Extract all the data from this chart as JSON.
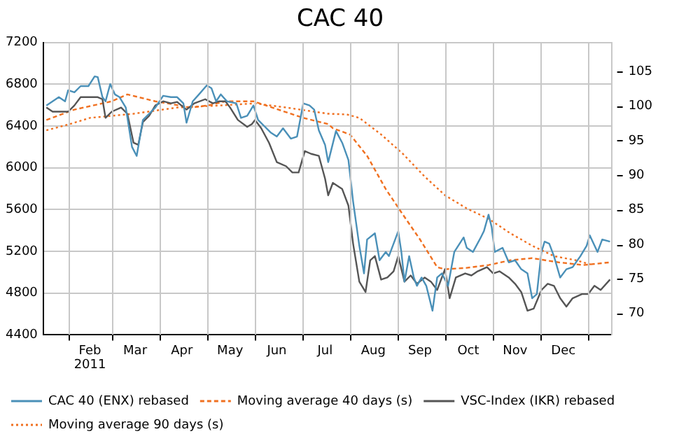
{
  "chart_data": {
    "type": "line",
    "title": "CAC 40",
    "legend": "bottom",
    "annotations": [
      "2011"
    ],
    "grid": true,
    "marker": "none",
    "xlim": [
      "2011-01-16",
      "2012-01-16"
    ],
    "xticks": [
      {
        "value": "2011-02-01",
        "label": null
      },
      {
        "value": "2011-02-15",
        "label": "Feb"
      },
      {
        "value": "2011-03-01",
        "label": null
      },
      {
        "value": "2011-03-16",
        "label": "Mar"
      },
      {
        "value": "2011-04-01",
        "label": null
      },
      {
        "value": "2011-04-15",
        "label": "Apr"
      },
      {
        "value": "2011-05-01",
        "label": null
      },
      {
        "value": "2011-05-16",
        "label": "May"
      },
      {
        "value": "2011-06-01",
        "label": null
      },
      {
        "value": "2011-06-15",
        "label": "Jun"
      },
      {
        "value": "2011-07-01",
        "label": null
      },
      {
        "value": "2011-07-16",
        "label": "Jul"
      },
      {
        "value": "2011-08-01",
        "label": null
      },
      {
        "value": "2011-08-16",
        "label": "Aug"
      },
      {
        "value": "2011-09-01",
        "label": null
      },
      {
        "value": "2011-09-15",
        "label": "Sep"
      },
      {
        "value": "2011-10-01",
        "label": null
      },
      {
        "value": "2011-10-16",
        "label": "Oct"
      },
      {
        "value": "2011-11-01",
        "label": null
      },
      {
        "value": "2011-11-15",
        "label": "Nov"
      },
      {
        "value": "2011-12-01",
        "label": null
      },
      {
        "value": "2011-12-16",
        "label": "Dec"
      },
      {
        "value": "2012-01-01",
        "label": null
      }
    ],
    "ylim": [
      4400,
      7200
    ],
    "yticks": [
      4400,
      4800,
      5200,
      5600,
      6000,
      6400,
      6800,
      7200
    ],
    "y2lim": [
      66.9,
      109.2
    ],
    "y2ticks": [
      70,
      75,
      80,
      85,
      90,
      95,
      100,
      105
    ],
    "series": [
      {
        "name": "CAC 40 (ENX) rebased",
        "color": "#4a90b8",
        "axis": "y2",
        "line_style": "solid",
        "x": [
          "2011-01-18",
          "2011-01-22",
          "2011-01-26",
          "2011-01-30",
          "2011-02-01",
          "2011-02-05",
          "2011-02-09",
          "2011-02-14",
          "2011-02-18",
          "2011-02-20",
          "2011-02-23",
          "2011-02-25",
          "2011-02-28",
          "2011-03-03",
          "2011-03-06",
          "2011-03-10",
          "2011-03-14",
          "2011-03-17",
          "2011-03-21",
          "2011-03-25",
          "2011-03-29",
          "2011-04-03",
          "2011-04-08",
          "2011-04-12",
          "2011-04-16",
          "2011-04-18",
          "2011-04-22",
          "2011-04-26",
          "2011-05-01",
          "2011-05-04",
          "2011-05-07",
          "2011-05-10",
          "2011-05-14",
          "2011-05-20",
          "2011-05-23",
          "2011-05-27",
          "2011-05-31",
          "2011-06-03",
          "2011-06-07",
          "2011-06-11",
          "2011-06-15",
          "2011-06-19",
          "2011-06-24",
          "2011-06-28",
          "2011-07-02",
          "2011-07-06",
          "2011-07-09",
          "2011-07-12",
          "2011-07-16",
          "2011-07-18",
          "2011-07-23",
          "2011-07-27",
          "2011-07-31",
          "2011-08-03",
          "2011-08-07",
          "2011-08-10",
          "2011-08-12",
          "2011-08-17",
          "2011-08-20",
          "2011-08-24",
          "2011-08-26",
          "2011-08-29",
          "2011-09-01",
          "2011-09-03",
          "2011-09-05",
          "2011-09-08",
          "2011-09-11",
          "2011-09-13",
          "2011-09-16",
          "2011-09-19",
          "2011-09-23",
          "2011-09-26",
          "2011-09-29",
          "2011-10-03",
          "2011-10-07",
          "2011-10-13",
          "2011-10-15",
          "2011-10-19",
          "2011-10-24",
          "2011-10-26",
          "2011-10-29",
          "2011-10-31",
          "2011-11-02",
          "2011-11-07",
          "2011-11-11",
          "2011-11-15",
          "2011-11-19",
          "2011-11-23",
          "2011-11-26",
          "2011-11-29",
          "2011-12-02",
          "2011-12-04",
          "2011-12-07",
          "2011-12-10",
          "2011-12-14",
          "2011-12-18",
          "2011-12-22",
          "2011-12-27",
          "2011-12-31",
          "2012-01-02",
          "2012-01-07",
          "2012-01-10",
          "2012-01-15"
        ],
        "values": [
          100.1,
          100.7,
          101.3,
          100.7,
          102.3,
          102.0,
          102.9,
          102.9,
          104.3,
          104.2,
          101.3,
          100.7,
          103.2,
          101.7,
          101.3,
          99.8,
          94.1,
          92.8,
          98.0,
          98.9,
          99.8,
          101.5,
          101.3,
          101.3,
          100.4,
          97.6,
          100.7,
          101.7,
          103.0,
          102.6,
          100.7,
          101.7,
          100.7,
          100.4,
          98.3,
          98.6,
          100.1,
          98.0,
          97.1,
          96.2,
          95.6,
          96.8,
          95.3,
          95.6,
          100.4,
          100.1,
          99.5,
          96.5,
          94.4,
          91.9,
          96.4,
          94.7,
          92.2,
          86.2,
          79.8,
          75.8,
          80.7,
          81.6,
          77.7,
          78.9,
          78.3,
          80.1,
          81.9,
          78.9,
          74.6,
          78.3,
          75.2,
          74.0,
          75.2,
          74.0,
          70.4,
          75.2,
          75.8,
          74.0,
          78.9,
          81.0,
          79.5,
          78.9,
          81.0,
          81.9,
          84.3,
          82.5,
          78.9,
          79.5,
          77.4,
          77.7,
          76.4,
          75.8,
          72.2,
          72.8,
          78.9,
          80.4,
          80.1,
          78.3,
          75.2,
          76.4,
          76.7,
          78.3,
          79.8,
          81.3,
          78.9,
          80.7,
          80.4
        ]
      },
      {
        "name": "VSC-Index (IKR) rebased",
        "color": "#555555",
        "axis": "y2",
        "line_style": "solid",
        "x": [
          "2011-01-18",
          "2011-01-22",
          "2011-01-27",
          "2011-02-01",
          "2011-02-05",
          "2011-02-09",
          "2011-02-15",
          "2011-02-20",
          "2011-02-23",
          "2011-02-25",
          "2011-03-01",
          "2011-03-07",
          "2011-03-11",
          "2011-03-15",
          "2011-03-18",
          "2011-03-21",
          "2011-03-25",
          "2011-03-29",
          "2011-04-03",
          "2011-04-08",
          "2011-04-12",
          "2011-04-18",
          "2011-04-23",
          "2011-04-30",
          "2011-05-05",
          "2011-05-09",
          "2011-05-13",
          "2011-05-16",
          "2011-05-21",
          "2011-05-27",
          "2011-05-30",
          "2011-06-01",
          "2011-06-05",
          "2011-06-10",
          "2011-06-15",
          "2011-06-21",
          "2011-06-25",
          "2011-06-29",
          "2011-07-03",
          "2011-07-07",
          "2011-07-12",
          "2011-07-16",
          "2011-07-18",
          "2011-07-21",
          "2011-07-27",
          "2011-07-31",
          "2011-08-03",
          "2011-08-07",
          "2011-08-11",
          "2011-08-14",
          "2011-08-17",
          "2011-08-21",
          "2011-08-25",
          "2011-08-29",
          "2011-09-01",
          "2011-09-05",
          "2011-09-09",
          "2011-09-13",
          "2011-09-18",
          "2011-09-22",
          "2011-09-26",
          "2011-10-01",
          "2011-10-04",
          "2011-10-08",
          "2011-10-14",
          "2011-10-18",
          "2011-10-22",
          "2011-10-28",
          "2011-11-01",
          "2011-11-05",
          "2011-11-11",
          "2011-11-15",
          "2011-11-19",
          "2011-11-23",
          "2011-11-27",
          "2011-12-02",
          "2011-12-06",
          "2011-12-10",
          "2011-12-14",
          "2011-12-18",
          "2011-12-22",
          "2011-12-28",
          "2012-01-01",
          "2012-01-05",
          "2012-01-09",
          "2012-01-15"
        ],
        "values": [
          99.8,
          99.2,
          99.2,
          99.2,
          100.1,
          101.3,
          101.3,
          101.3,
          101.0,
          98.3,
          99.2,
          99.8,
          98.9,
          94.7,
          94.4,
          97.7,
          98.6,
          100.1,
          100.7,
          100.4,
          100.6,
          99.5,
          100.4,
          101.0,
          100.4,
          100.7,
          100.7,
          99.8,
          98.0,
          97.0,
          97.4,
          98.0,
          96.8,
          94.7,
          91.9,
          91.3,
          90.4,
          90.4,
          93.5,
          93.1,
          92.8,
          89.5,
          87.1,
          88.9,
          88.0,
          85.6,
          80.1,
          74.6,
          73.1,
          77.7,
          78.3,
          74.9,
          75.2,
          76.1,
          78.3,
          74.6,
          75.5,
          74.3,
          75.2,
          74.6,
          73.4,
          76.4,
          72.2,
          75.2,
          75.8,
          75.5,
          76.1,
          76.7,
          75.8,
          76.1,
          75.2,
          74.3,
          73.1,
          70.4,
          70.7,
          73.4,
          74.3,
          74.0,
          72.2,
          71.0,
          72.2,
          72.8,
          72.8,
          74.0,
          73.4,
          74.9
        ]
      },
      {
        "name": "Moving average 40 days (s)",
        "color": "#f07020",
        "axis": "y2",
        "line_style": "dashed",
        "x": [
          "2011-01-18",
          "2011-02-05",
          "2011-03-01",
          "2011-03-11",
          "2011-03-29",
          "2011-04-21",
          "2011-05-02",
          "2011-05-13",
          "2011-05-31",
          "2011-06-12",
          "2011-07-02",
          "2011-07-18",
          "2011-07-21",
          "2011-08-01",
          "2011-08-12",
          "2011-08-24",
          "2011-09-04",
          "2011-09-15",
          "2011-09-26",
          "2011-10-01",
          "2011-10-15",
          "2011-10-29",
          "2011-11-12",
          "2011-11-26",
          "2011-12-13",
          "2011-12-29",
          "2012-01-15"
        ],
        "values": [
          98.0,
          99.5,
          100.7,
          101.7,
          100.7,
          99.8,
          100.1,
          100.7,
          100.7,
          99.8,
          98.3,
          97.4,
          96.8,
          95.9,
          92.8,
          88.0,
          84.3,
          80.7,
          76.7,
          76.4,
          76.6,
          77.0,
          77.7,
          78.0,
          77.4,
          77.0,
          77.4
        ]
      },
      {
        "name": "Moving average 90 days (s)",
        "color": "#f07020",
        "axis": "y2",
        "line_style": "dotted",
        "x": [
          "2011-01-18",
          "2011-02-02",
          "2011-02-15",
          "2011-03-15",
          "2011-04-12",
          "2011-05-10",
          "2011-06-01",
          "2011-06-21",
          "2011-07-18",
          "2011-07-30",
          "2011-08-07",
          "2011-08-21",
          "2011-09-04",
          "2011-09-18",
          "2011-10-01",
          "2011-10-15",
          "2011-10-29",
          "2011-11-12",
          "2011-11-26",
          "2011-12-10",
          "2011-12-24",
          "2012-01-04"
        ],
        "values": [
          96.5,
          97.4,
          98.3,
          98.9,
          99.8,
          100.1,
          100.4,
          99.8,
          98.9,
          98.8,
          98.3,
          95.9,
          93.1,
          89.8,
          87.1,
          85.2,
          83.7,
          81.6,
          79.8,
          78.3,
          77.7,
          77.0
        ]
      }
    ]
  }
}
